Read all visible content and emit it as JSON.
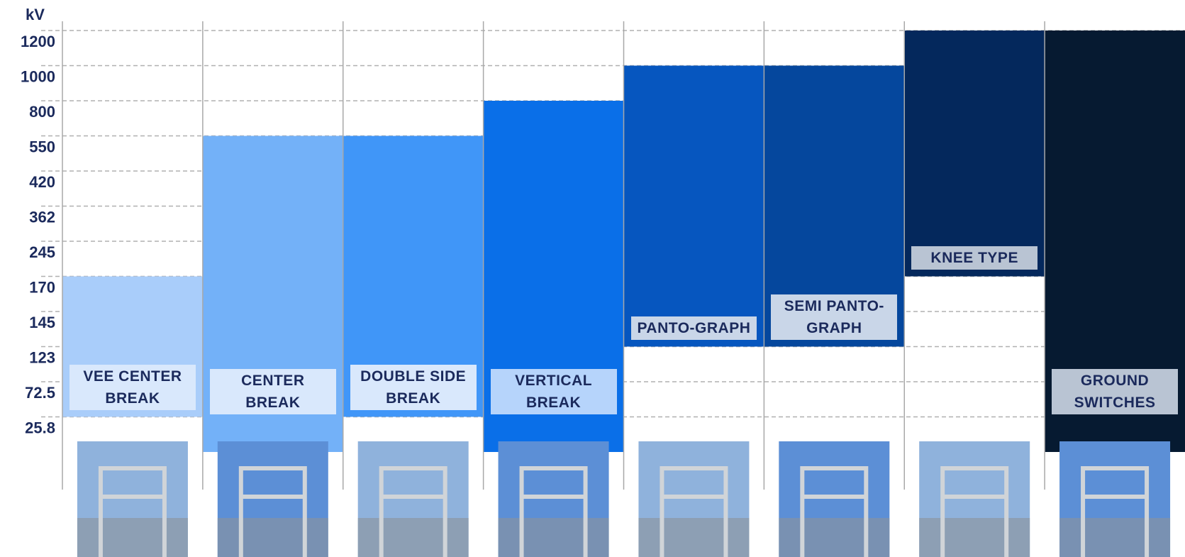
{
  "chart_data": {
    "type": "range_bar",
    "y_label": "kV",
    "yticks": [
      1200,
      1000,
      800,
      550,
      420,
      362,
      245,
      170,
      145,
      123,
      72.5,
      25.8
    ],
    "grid": true,
    "categories": [
      "VEE CENTER BREAK",
      "CENTER BREAK",
      "DOUBLE SIDE BREAK",
      "VERTICAL BREAK",
      "PANTO-GRAPH",
      "SEMI PANTO-GRAPH",
      "KNEE TYPE",
      "GROUND SWITCHES"
    ],
    "low": [
      72.5,
      25.8,
      72.5,
      25.8,
      145,
      145,
      245,
      25.8
    ],
    "high": [
      170,
      550,
      550,
      800,
      1000,
      1000,
      1200,
      1200
    ],
    "colors": [
      "#a9cdfa",
      "#73b1f8",
      "#4096f8",
      "#0a6fe8",
      "#0656bf",
      "#05479d",
      "#04285c",
      "#061a31"
    ],
    "label_colors": [
      "#d9e8fc",
      "#d9e8fc",
      "#d9e8fc",
      "#b6d4fb",
      "#c9d6e8",
      "#c9d6e8",
      "#b9c4d3",
      "#b9c4d3"
    ]
  }
}
